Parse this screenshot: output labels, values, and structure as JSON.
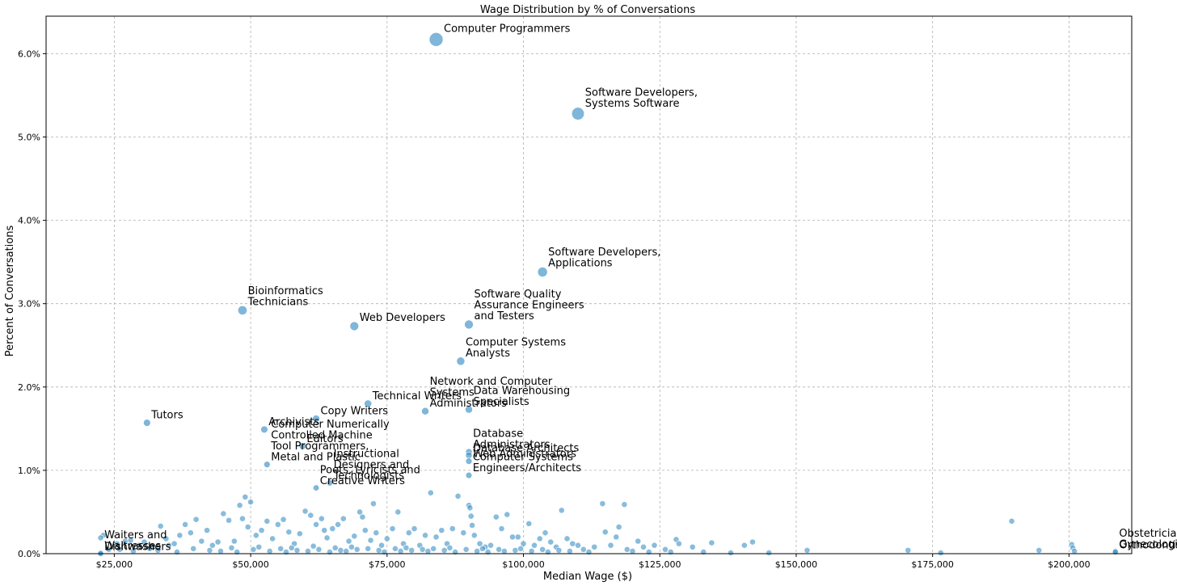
{
  "chart_data": {
    "type": "scatter",
    "title": "Wage Distribution by % of Conversations",
    "xlabel": "Median Wage ($)",
    "ylabel": "Percent of Conversations",
    "xlim": [
      12500,
      211500
    ],
    "ylim": [
      0,
      6.45
    ],
    "grid": true,
    "marker_color": "#3b8fc4",
    "x_ticks": [
      25000,
      50000,
      75000,
      100000,
      125000,
      150000,
      175000,
      200000
    ],
    "x_tick_labels": [
      "$25,000",
      "$50,000",
      "$75,000",
      "$100,000",
      "$125,000",
      "$150,000",
      "$175,000",
      "$200,000"
    ],
    "y_ticks": [
      0,
      1,
      2,
      3,
      4,
      5,
      6
    ],
    "y_tick_labels": [
      "0.0%",
      "1.0%",
      "2.0%",
      "3.0%",
      "4.0%",
      "5.0%",
      "6.0%"
    ],
    "labeled_points": [
      {
        "label": [
          "Computer Programmers"
        ],
        "x": 84000,
        "y": 6.17
      },
      {
        "label": [
          "Software Developers,",
          "Systems Software"
        ],
        "x": 110000,
        "y": 5.28
      },
      {
        "label": [
          "Software Developers,",
          "Applications"
        ],
        "x": 103500,
        "y": 3.38
      },
      {
        "label": [
          "Bioinformatics",
          "Technicians"
        ],
        "x": 48500,
        "y": 2.92
      },
      {
        "label": [
          "Web Developers"
        ],
        "x": 69000,
        "y": 2.73
      },
      {
        "label": [
          "Software Quality",
          "Assurance Engineers",
          "and Testers"
        ],
        "x": 90000,
        "y": 2.75
      },
      {
        "label": [
          "Computer Systems",
          "Analysts"
        ],
        "x": 88500,
        "y": 2.31
      },
      {
        "label": [
          "Network and Computer",
          "Systems",
          "Administrators"
        ],
        "x": 82000,
        "y": 1.71
      },
      {
        "label": [
          "Data Warehousing",
          "Specialists"
        ],
        "x": 90000,
        "y": 1.73
      },
      {
        "label": [
          "Technical Writers"
        ],
        "x": 71500,
        "y": 1.8
      },
      {
        "label": [
          "Tutors"
        ],
        "x": 31000,
        "y": 1.57
      },
      {
        "label": [
          "Copy Writers"
        ],
        "x": 62000,
        "y": 1.62
      },
      {
        "label": [
          "Archivists"
        ],
        "x": 52500,
        "y": 1.49
      },
      {
        "label": [
          "Editors"
        ],
        "x": 59500,
        "y": 1.29
      },
      {
        "label": [
          "Computer Numerically",
          "Controlled Machine",
          "Tool Programmers,",
          "Metal and Plastic"
        ],
        "x": 53000,
        "y": 1.07
      },
      {
        "label": [
          "Instructional",
          "Designers and",
          "Technologists"
        ],
        "x": 64500,
        "y": 0.85
      },
      {
        "label": [
          "Poets, Lyricists and",
          "Creative Writers"
        ],
        "x": 62000,
        "y": 0.79
      },
      {
        "label": [
          "Database",
          "Administrators"
        ],
        "x": 90000,
        "y": 1.22
      },
      {
        "label": [
          "Database Architects"
        ],
        "x": 90000,
        "y": 1.18
      },
      {
        "label": [
          "Web Administrators"
        ],
        "x": 90000,
        "y": 1.11
      },
      {
        "label": [
          "Computer Systems",
          "Engineers/Architects"
        ],
        "x": 90000,
        "y": 0.94
      },
      {
        "label": [
          "Waiters and",
          "Waitresses"
        ],
        "x": 22500,
        "y": 0.01
      },
      {
        "label": [
          "Dishwashers"
        ],
        "x": 22500,
        "y": 0.0
      },
      {
        "label": [
          "Obstetricians and",
          "Gynecologists"
        ],
        "x": 208500,
        "y": 0.03
      },
      {
        "label": [
          "Orthodontists"
        ],
        "x": 208500,
        "y": 0.02
      }
    ],
    "small_points": [
      [
        23000,
        0.22
      ],
      [
        22500,
        0.19
      ],
      [
        24000,
        0.05
      ],
      [
        25500,
        0.12
      ],
      [
        27000,
        0.15
      ],
      [
        28000,
        0.16
      ],
      [
        29500,
        0.1
      ],
      [
        30500,
        0.14
      ],
      [
        32000,
        0.08
      ],
      [
        33500,
        0.33
      ],
      [
        34500,
        0.18
      ],
      [
        35000,
        0.1
      ],
      [
        36000,
        0.12
      ],
      [
        37000,
        0.22
      ],
      [
        38000,
        0.35
      ],
      [
        39000,
        0.25
      ],
      [
        40000,
        0.41
      ],
      [
        41000,
        0.15
      ],
      [
        42000,
        0.28
      ],
      [
        43000,
        0.1
      ],
      [
        44000,
        0.14
      ],
      [
        45000,
        0.48
      ],
      [
        46000,
        0.4
      ],
      [
        47000,
        0.15
      ],
      [
        48000,
        0.58
      ],
      [
        48500,
        0.42
      ],
      [
        49000,
        0.68
      ],
      [
        49500,
        0.32
      ],
      [
        50000,
        0.62
      ],
      [
        51000,
        0.22
      ],
      [
        52000,
        0.28
      ],
      [
        53000,
        0.39
      ],
      [
        54000,
        0.18
      ],
      [
        55000,
        0.35
      ],
      [
        56000,
        0.41
      ],
      [
        57000,
        0.26
      ],
      [
        58000,
        0.12
      ],
      [
        59000,
        0.24
      ],
      [
        60000,
        0.51
      ],
      [
        61000,
        0.46
      ],
      [
        62000,
        0.35
      ],
      [
        63000,
        0.42
      ],
      [
        63500,
        0.28
      ],
      [
        64000,
        0.19
      ],
      [
        65000,
        0.3
      ],
      [
        66000,
        0.35
      ],
      [
        67000,
        0.42
      ],
      [
        68000,
        0.15
      ],
      [
        69000,
        0.21
      ],
      [
        70000,
        0.5
      ],
      [
        70500,
        0.44
      ],
      [
        71000,
        0.28
      ],
      [
        72000,
        0.16
      ],
      [
        72500,
        0.6
      ],
      [
        73000,
        0.25
      ],
      [
        74000,
        0.1
      ],
      [
        75000,
        0.18
      ],
      [
        76000,
        0.3
      ],
      [
        77000,
        0.5
      ],
      [
        78000,
        0.12
      ],
      [
        79000,
        0.25
      ],
      [
        80000,
        0.3
      ],
      [
        81000,
        0.1
      ],
      [
        82000,
        0.22
      ],
      [
        83000,
        0.73
      ],
      [
        84000,
        0.2
      ],
      [
        85000,
        0.28
      ],
      [
        86000,
        0.12
      ],
      [
        87000,
        0.3
      ],
      [
        88000,
        0.69
      ],
      [
        89000,
        0.25
      ],
      [
        90000,
        0.58
      ],
      [
        90200,
        0.55
      ],
      [
        90400,
        0.45
      ],
      [
        90600,
        0.34
      ],
      [
        91000,
        0.22
      ],
      [
        92000,
        0.12
      ],
      [
        93000,
        0.08
      ],
      [
        94000,
        0.1
      ],
      [
        95000,
        0.44
      ],
      [
        96000,
        0.3
      ],
      [
        97000,
        0.47
      ],
      [
        98000,
        0.2
      ],
      [
        99000,
        0.2
      ],
      [
        100000,
        0.12
      ],
      [
        101000,
        0.36
      ],
      [
        102000,
        0.1
      ],
      [
        103000,
        0.18
      ],
      [
        104000,
        0.25
      ],
      [
        105000,
        0.14
      ],
      [
        106000,
        0.08
      ],
      [
        107000,
        0.52
      ],
      [
        108000,
        0.18
      ],
      [
        109000,
        0.12
      ],
      [
        110000,
        0.1
      ],
      [
        111000,
        0.05
      ],
      [
        113000,
        0.08
      ],
      [
        114500,
        0.6
      ],
      [
        115000,
        0.26
      ],
      [
        116000,
        0.1
      ],
      [
        117000,
        0.2
      ],
      [
        117500,
        0.32
      ],
      [
        118500,
        0.59
      ],
      [
        119000,
        0.05
      ],
      [
        121000,
        0.15
      ],
      [
        122000,
        0.08
      ],
      [
        124000,
        0.1
      ],
      [
        126000,
        0.05
      ],
      [
        128000,
        0.17
      ],
      [
        128500,
        0.12
      ],
      [
        131000,
        0.08
      ],
      [
        134500,
        0.13
      ],
      [
        138000,
        0.01
      ],
      [
        140500,
        0.1
      ],
      [
        142000,
        0.14
      ],
      [
        145000,
        0.01
      ],
      [
        152000,
        0.04
      ],
      [
        170500,
        0.04
      ],
      [
        176500,
        0.01
      ],
      [
        189500,
        0.39
      ],
      [
        194500,
        0.04
      ],
      [
        200500,
        0.11
      ],
      [
        200700,
        0.07
      ],
      [
        201000,
        0.03
      ],
      [
        26000,
        0.05
      ],
      [
        28500,
        0.03
      ],
      [
        31500,
        0.06
      ],
      [
        33000,
        0.04
      ],
      [
        36500,
        0.02
      ],
      [
        39500,
        0.06
      ],
      [
        42500,
        0.04
      ],
      [
        44500,
        0.03
      ],
      [
        46500,
        0.07
      ],
      [
        47500,
        0.02
      ],
      [
        50500,
        0.05
      ],
      [
        51500,
        0.08
      ],
      [
        53500,
        0.03
      ],
      [
        55500,
        0.06
      ],
      [
        56500,
        0.02
      ],
      [
        57500,
        0.07
      ],
      [
        58500,
        0.04
      ],
      [
        60500,
        0.03
      ],
      [
        61500,
        0.09
      ],
      [
        62500,
        0.05
      ],
      [
        64500,
        0.02
      ],
      [
        65500,
        0.07
      ],
      [
        66500,
        0.04
      ],
      [
        67500,
        0.03
      ],
      [
        68500,
        0.08
      ],
      [
        69500,
        0.05
      ],
      [
        71500,
        0.06
      ],
      [
        73500,
        0.04
      ],
      [
        74500,
        0.02
      ],
      [
        76500,
        0.06
      ],
      [
        77500,
        0.03
      ],
      [
        78500,
        0.07
      ],
      [
        79500,
        0.04
      ],
      [
        81500,
        0.05
      ],
      [
        82500,
        0.03
      ],
      [
        83500,
        0.06
      ],
      [
        85500,
        0.04
      ],
      [
        86500,
        0.07
      ],
      [
        87500,
        0.02
      ],
      [
        89500,
        0.05
      ],
      [
        91500,
        0.03
      ],
      [
        92500,
        0.06
      ],
      [
        93500,
        0.02
      ],
      [
        95500,
        0.05
      ],
      [
        96500,
        0.03
      ],
      [
        98500,
        0.04
      ],
      [
        99500,
        0.06
      ],
      [
        101500,
        0.03
      ],
      [
        103500,
        0.05
      ],
      [
        104500,
        0.02
      ],
      [
        106500,
        0.04
      ],
      [
        108500,
        0.03
      ],
      [
        112000,
        0.02
      ],
      [
        120000,
        0.03
      ],
      [
        123000,
        0.02
      ],
      [
        127000,
        0.02
      ],
      [
        133000,
        0.02
      ]
    ]
  }
}
